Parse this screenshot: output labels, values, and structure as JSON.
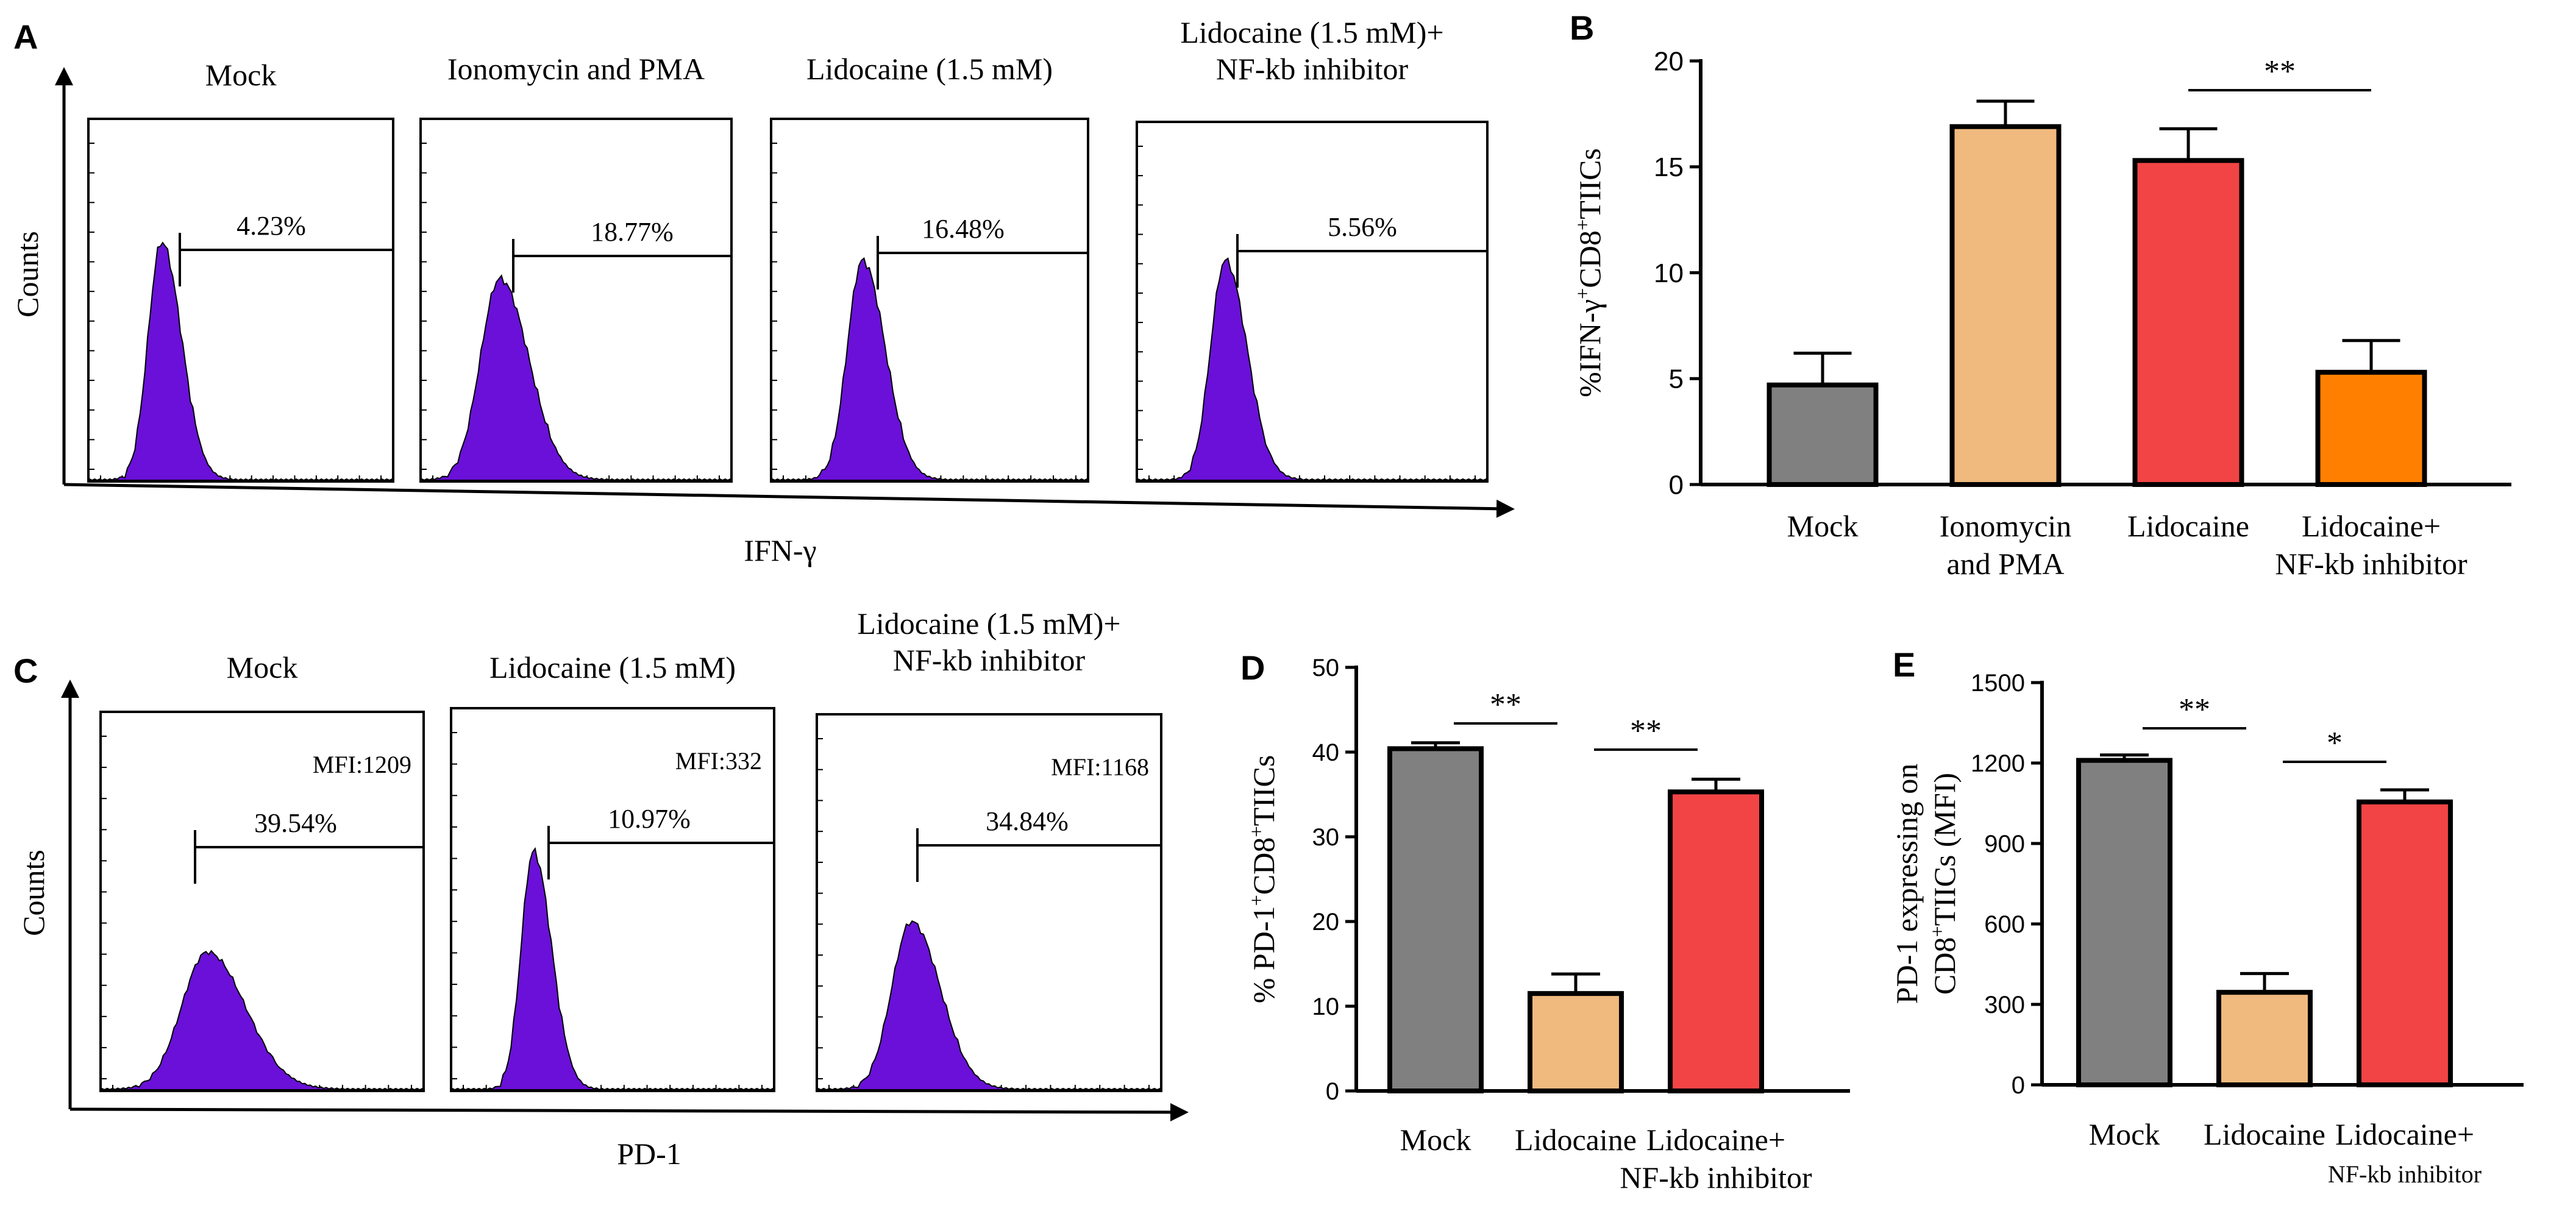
{
  "panel_labels": {
    "A": "A",
    "B": "B",
    "C": "C",
    "D": "D",
    "E": "E"
  },
  "colors": {
    "histogram_fill": "#6a10d8",
    "mock_bar": "#808080",
    "ionomycin_bar": "#f0b97e",
    "lidocaine_bar": "#f24444",
    "inhibitor_bar": "#ff8000",
    "text": "#000000"
  },
  "panel_a": {
    "y_axis_label": "Counts",
    "x_axis_label": "IFN-γ",
    "histograms": [
      {
        "title": [
          "Mock"
        ],
        "gate_percent": "4.23%"
      },
      {
        "title": [
          "Ionomycin and PMA"
        ],
        "gate_percent": "18.77%"
      },
      {
        "title": [
          "Lidocaine (1.5 mM)"
        ],
        "gate_percent": "16.48%"
      },
      {
        "title": [
          "Lidocaine (1.5 mM)+",
          "NF-kb inhibitor"
        ],
        "gate_percent": "5.56%"
      }
    ]
  },
  "panel_c": {
    "y_axis_label": "Counts",
    "x_axis_label": "PD-1",
    "histograms": [
      {
        "title": [
          "Mock"
        ],
        "gate_percent": "39.54%",
        "mfi": "MFI:1209"
      },
      {
        "title": [
          "Lidocaine (1.5 mM)"
        ],
        "gate_percent": "10.97%",
        "mfi": "MFI:332"
      },
      {
        "title": [
          "Lidocaine (1.5 mM)+",
          "NF-kb inhibitor"
        ],
        "gate_percent": "34.84%",
        "mfi": "MFI:1168"
      }
    ]
  },
  "chart_data": [
    {
      "panel": "B",
      "type": "bar",
      "categories": [
        [
          "Mock"
        ],
        [
          "Ionomycin",
          "and PMA"
        ],
        [
          "Lidocaine"
        ],
        [
          "Lidocaine+",
          "NF-kb inhibitor"
        ]
      ],
      "values": [
        4.7,
        16.9,
        15.3,
        5.3
      ],
      "errors": [
        1.5,
        1.2,
        1.5,
        1.5
      ],
      "colors": [
        "#808080",
        "#f0b97e",
        "#f24444",
        "#ff8000"
      ],
      "ylabel": [
        "%IFN-γ",
        "+",
        "CD8",
        "+",
        "TIICs"
      ],
      "ylim": [
        0,
        20
      ],
      "yticks": [
        0,
        5,
        10,
        15,
        20
      ],
      "significance": [
        {
          "from": 2,
          "to": 3,
          "label": "**"
        }
      ]
    },
    {
      "panel": "D",
      "type": "bar",
      "categories": [
        [
          "Mock"
        ],
        [
          "Lidocaine"
        ],
        [
          "Lidocaine+",
          "NF-kb inhibitor"
        ]
      ],
      "values": [
        40.4,
        11.5,
        35.3
      ],
      "errors": [
        0.7,
        2.3,
        1.5
      ],
      "colors": [
        "#808080",
        "#f0b97e",
        "#f24444"
      ],
      "ylabel": [
        "% PD-1",
        "+",
        "CD8",
        "+",
        "TIICs"
      ],
      "ylim": [
        0,
        50
      ],
      "yticks": [
        0,
        10,
        20,
        30,
        40,
        50
      ],
      "significance": [
        {
          "from": 0,
          "to": 1,
          "label": "**"
        },
        {
          "from": 1,
          "to": 2,
          "label": "**"
        }
      ]
    },
    {
      "panel": "E",
      "type": "bar",
      "categories": [
        [
          "Mock"
        ],
        [
          "Lidocaine"
        ],
        [
          "Lidocaine+",
          "NF-kb inhibitor"
        ]
      ],
      "values": [
        1210,
        345,
        1055
      ],
      "errors": [
        20,
        70,
        45
      ],
      "colors": [
        "#808080",
        "#f0b97e",
        "#f24444"
      ],
      "ylabel_lines": [
        [
          "PD-1 expressing on"
        ],
        [
          "CD8",
          "+",
          "TIICs (MFI)"
        ]
      ],
      "ylim": [
        0,
        1500
      ],
      "yticks": [
        0,
        300,
        600,
        900,
        1200,
        1500
      ],
      "significance": [
        {
          "from": 0,
          "to": 1,
          "label": "**"
        },
        {
          "from": 1,
          "to": 2,
          "label": "*"
        }
      ]
    }
  ]
}
